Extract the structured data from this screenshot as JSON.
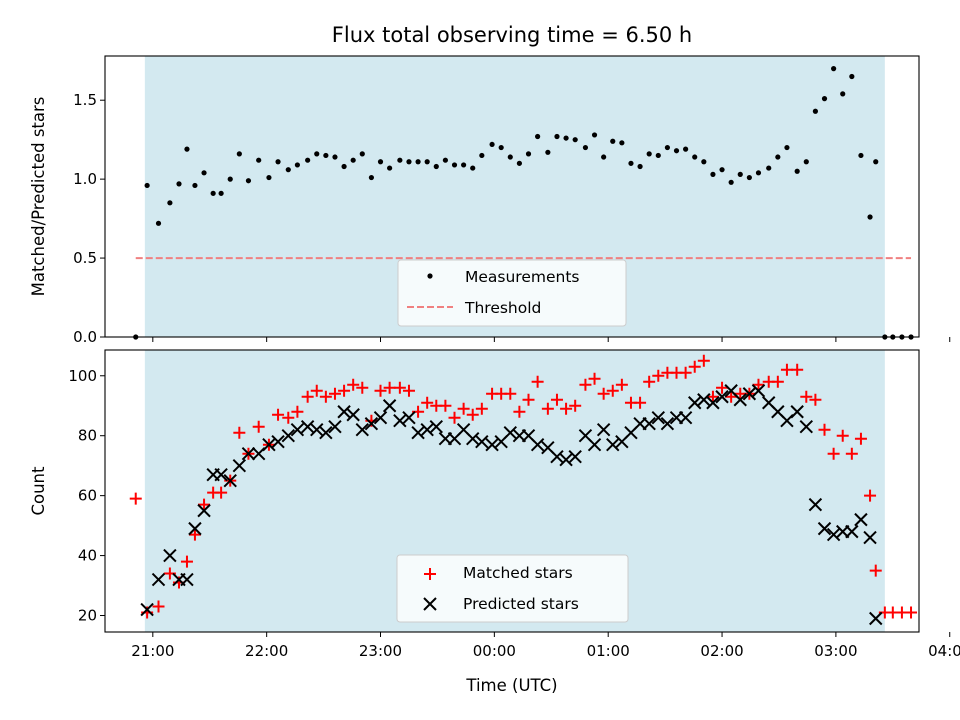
{
  "title": "Flux total observing time = 6.50 h",
  "shade_color": "#d3e9f0",
  "chart_data": [
    {
      "type": "scatter",
      "ylabel": "Matched/Predicted stars",
      "xlabel": "",
      "xlim": [
        -0.42,
        6.73
      ],
      "ylim": [
        0.0,
        1.78
      ],
      "yticks": [
        0.0,
        0.5,
        1.0,
        1.5
      ],
      "ytick_labels": [
        "0.0",
        "0.5",
        "1.0",
        "1.5"
      ],
      "xticks": [
        0,
        1,
        2,
        3,
        4,
        5,
        6,
        7
      ],
      "shaded_span": [
        -0.07,
        6.43
      ],
      "legend": {
        "position": "lower center",
        "entries": [
          "Measurements",
          "Threshold"
        ]
      },
      "series": [
        {
          "name": "Measurements",
          "color": "#000000",
          "marker": "dot",
          "x": [
            -0.15,
            -0.05,
            0.05,
            0.15,
            0.23,
            0.3,
            0.37,
            0.45,
            0.53,
            0.6,
            0.68,
            0.76,
            0.84,
            0.93,
            1.02,
            1.1,
            1.19,
            1.27,
            1.36,
            1.44,
            1.52,
            1.6,
            1.68,
            1.76,
            1.84,
            1.92,
            2.0,
            2.08,
            2.17,
            2.25,
            2.33,
            2.41,
            2.49,
            2.57,
            2.65,
            2.73,
            2.81,
            2.89,
            2.98,
            3.06,
            3.14,
            3.22,
            3.3,
            3.38,
            3.47,
            3.55,
            3.63,
            3.71,
            3.8,
            3.88,
            3.96,
            4.04,
            4.12,
            4.2,
            4.28,
            4.36,
            4.44,
            4.52,
            4.6,
            4.68,
            4.76,
            4.84,
            4.92,
            5.0,
            5.08,
            5.16,
            5.24,
            5.32,
            5.41,
            5.49,
            5.57,
            5.66,
            5.74,
            5.82,
            5.9,
            5.98,
            6.06,
            6.14,
            6.22,
            6.3,
            6.35,
            6.43,
            6.5,
            6.58,
            6.66
          ],
          "y": [
            0.0,
            0.96,
            0.72,
            0.85,
            0.97,
            1.19,
            0.96,
            1.04,
            0.91,
            0.91,
            1.0,
            1.16,
            0.99,
            1.12,
            1.01,
            1.11,
            1.06,
            1.09,
            1.12,
            1.16,
            1.15,
            1.14,
            1.08,
            1.12,
            1.16,
            1.01,
            1.11,
            1.07,
            1.12,
            1.11,
            1.11,
            1.11,
            1.08,
            1.12,
            1.09,
            1.09,
            1.07,
            1.15,
            1.22,
            1.2,
            1.14,
            1.1,
            1.16,
            1.27,
            1.17,
            1.27,
            1.26,
            1.25,
            1.2,
            1.28,
            1.14,
            1.24,
            1.23,
            1.1,
            1.08,
            1.16,
            1.15,
            1.2,
            1.18,
            1.19,
            1.14,
            1.11,
            1.03,
            1.06,
            0.98,
            1.03,
            1.01,
            1.04,
            1.07,
            1.14,
            1.2,
            1.05,
            1.11,
            1.43,
            1.51,
            1.7,
            1.54,
            1.65,
            1.15,
            0.76,
            1.11,
            0.0,
            0.0,
            0.0,
            0.0
          ]
        },
        {
          "name": "Threshold",
          "color": "#f08080",
          "style": "dashed",
          "x": [
            -0.15,
            6.66
          ],
          "y": [
            0.5,
            0.5
          ]
        }
      ]
    },
    {
      "type": "scatter",
      "ylabel": "Count",
      "xlabel": "Time (UTC)",
      "xlim": [
        -0.42,
        6.73
      ],
      "ylim": [
        14.5,
        108.6
      ],
      "yticks": [
        20,
        40,
        60,
        80,
        100
      ],
      "ytick_labels": [
        "20",
        "40",
        "60",
        "80",
        "100"
      ],
      "xticks": [
        0,
        1,
        2,
        3,
        4,
        5,
        6,
        7
      ],
      "xtick_labels": [
        "21:00",
        "22:00",
        "23:00",
        "00:00",
        "01:00",
        "02:00",
        "03:00",
        "04:00"
      ],
      "shaded_span": [
        -0.07,
        6.43
      ],
      "legend": {
        "position": "lower center",
        "entries": [
          "Matched stars",
          "Predicted stars"
        ]
      },
      "series": [
        {
          "name": "Matched stars",
          "color": "#ff0000",
          "marker": "plus",
          "x": [
            -0.15,
            -0.05,
            0.05,
            0.15,
            0.23,
            0.3,
            0.37,
            0.45,
            0.53,
            0.6,
            0.68,
            0.76,
            0.84,
            0.93,
            1.02,
            1.1,
            1.19,
            1.27,
            1.36,
            1.44,
            1.52,
            1.6,
            1.68,
            1.76,
            1.84,
            1.92,
            2.0,
            2.08,
            2.17,
            2.25,
            2.33,
            2.41,
            2.49,
            2.57,
            2.65,
            2.73,
            2.81,
            2.89,
            2.98,
            3.06,
            3.14,
            3.22,
            3.3,
            3.38,
            3.47,
            3.55,
            3.63,
            3.71,
            3.8,
            3.88,
            3.96,
            4.04,
            4.12,
            4.2,
            4.28,
            4.36,
            4.44,
            4.52,
            4.6,
            4.68,
            4.76,
            4.84,
            4.92,
            5.0,
            5.08,
            5.16,
            5.24,
            5.32,
            5.41,
            5.49,
            5.57,
            5.66,
            5.74,
            5.82,
            5.9,
            5.98,
            6.06,
            6.14,
            6.22,
            6.3,
            6.35,
            6.43,
            6.5,
            6.58,
            6.66
          ],
          "y": [
            59,
            21,
            23,
            34,
            31,
            38,
            47,
            57,
            61,
            61,
            65,
            81,
            74,
            83,
            77,
            87,
            86,
            88,
            93,
            95,
            93,
            94,
            95,
            97,
            96,
            85,
            95,
            96,
            96,
            95,
            88,
            91,
            90,
            90,
            86,
            89,
            87,
            89,
            94,
            94,
            94,
            88,
            92,
            98,
            89,
            92,
            89,
            90,
            97,
            99,
            94,
            95,
            97,
            91,
            91,
            98,
            100,
            101,
            101,
            101,
            103,
            105,
            93,
            96,
            93,
            94,
            94,
            97,
            98,
            98,
            102,
            102,
            93,
            92,
            82,
            74,
            80,
            74,
            79,
            60,
            35,
            21,
            21,
            21,
            21
          ]
        },
        {
          "name": "Predicted stars",
          "color": "#000000",
          "marker": "x",
          "x": [
            -0.05,
            0.05,
            0.15,
            0.23,
            0.3,
            0.37,
            0.45,
            0.53,
            0.6,
            0.68,
            0.76,
            0.84,
            0.93,
            1.02,
            1.1,
            1.19,
            1.27,
            1.36,
            1.44,
            1.52,
            1.6,
            1.68,
            1.76,
            1.84,
            1.92,
            2.0,
            2.08,
            2.17,
            2.25,
            2.33,
            2.41,
            2.49,
            2.57,
            2.65,
            2.73,
            2.81,
            2.89,
            2.98,
            3.06,
            3.14,
            3.22,
            3.3,
            3.38,
            3.47,
            3.55,
            3.63,
            3.71,
            3.8,
            3.88,
            3.96,
            4.04,
            4.12,
            4.2,
            4.28,
            4.36,
            4.44,
            4.52,
            4.6,
            4.68,
            4.76,
            4.84,
            4.92,
            5.0,
            5.08,
            5.16,
            5.24,
            5.32,
            5.41,
            5.49,
            5.57,
            5.66,
            5.74,
            5.82,
            5.9,
            5.98,
            6.06,
            6.14,
            6.22,
            6.3,
            6.35
          ],
          "y": [
            22,
            32,
            40,
            32,
            32,
            49,
            55,
            67,
            67,
            65,
            70,
            74,
            74,
            77,
            78,
            80,
            82,
            83,
            82,
            81,
            83,
            88,
            87,
            82,
            84,
            86,
            90,
            85,
            86,
            81,
            82,
            83,
            79,
            79,
            82,
            79,
            78,
            77,
            78,
            81,
            80,
            80,
            77,
            76,
            73,
            72,
            73,
            80,
            77,
            82,
            77,
            78,
            81,
            84,
            84,
            86,
            84,
            86,
            86,
            91,
            92,
            91,
            93,
            95,
            92,
            94,
            95,
            91,
            88,
            85,
            88,
            83,
            57,
            49,
            47,
            48,
            48,
            52,
            46,
            19
          ]
        }
      ]
    }
  ]
}
